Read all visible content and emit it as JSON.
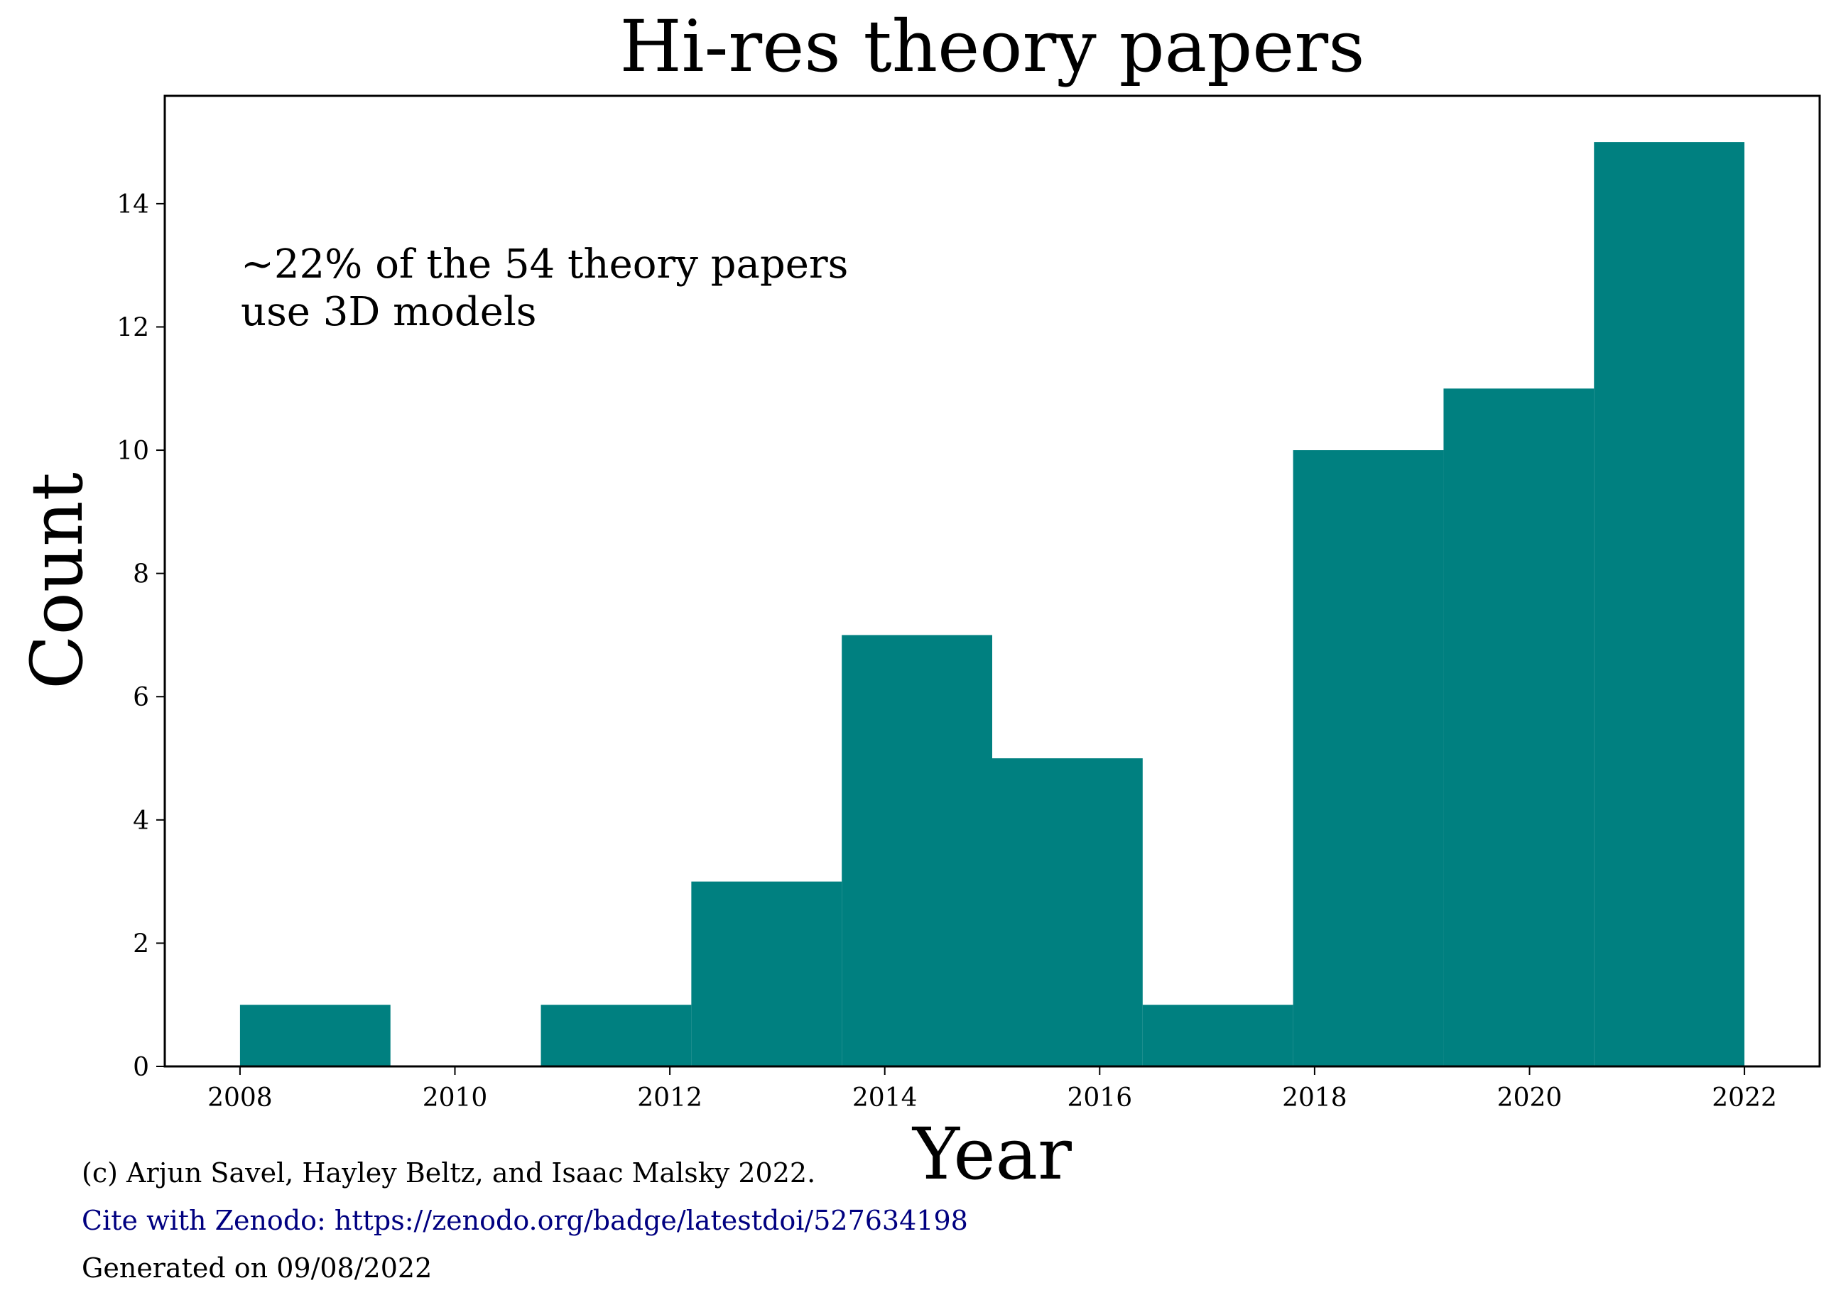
{
  "chart_data": {
    "type": "bar",
    "title": "Hi-res theory papers",
    "xlabel": "Year",
    "ylabel": "Count",
    "bin_edges": [
      2008.0,
      2009.4,
      2010.8,
      2012.2,
      2013.6,
      2015.0,
      2016.4,
      2017.8,
      2019.2,
      2020.6,
      2022.0
    ],
    "values": [
      1,
      0,
      1,
      3,
      7,
      5,
      1,
      10,
      11,
      15
    ],
    "xlim": [
      2007.3,
      2022.7
    ],
    "ylim": [
      0,
      15.75
    ],
    "xticks": [
      2008,
      2010,
      2012,
      2014,
      2016,
      2018,
      2020,
      2022
    ],
    "yticks": [
      0,
      2,
      4,
      6,
      8,
      10,
      12,
      14
    ],
    "bar_color": "#008080",
    "grid": false,
    "annotation": [
      "~22% of the 54 theory papers",
      "use 3D models"
    ]
  },
  "footer": {
    "copyright": "(c) Arjun Savel, Hayley Beltz, and Isaac Malsky 2022.",
    "cite": "Cite with Zenodo: https://zenodo.org/badge/latestdoi/527634198",
    "cite_color": "#000080",
    "generated": "Generated on 09/08/2022"
  }
}
